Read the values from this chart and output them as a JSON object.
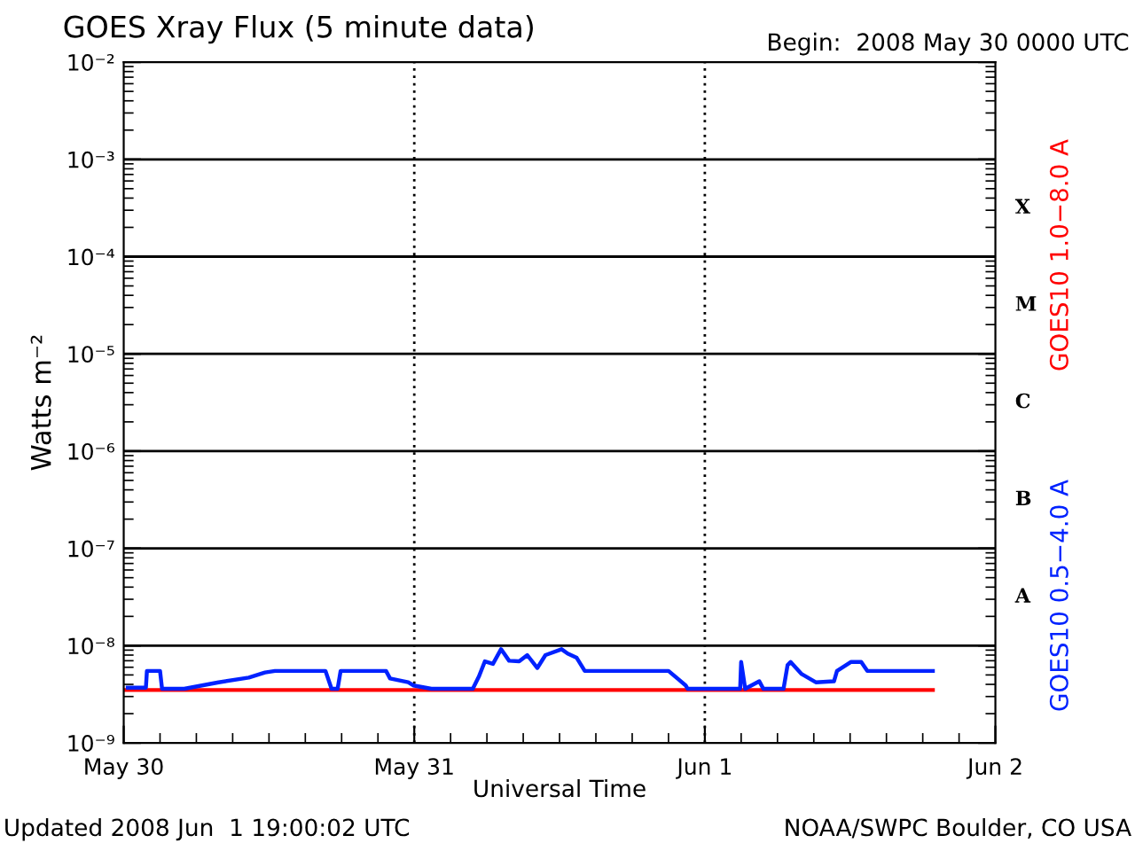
{
  "chart_data": {
    "type": "line",
    "title": "GOES Xray Flux (5 minute data)",
    "subtitle": "Begin:  2008 May 30 0000 UTC",
    "xlabel": "Universal Time",
    "ylabel": "Watts m⁻²",
    "annotations": [
      "Updated 2008 Jun  1 19:00:02 UTC",
      "NOAA/SWPC Boulder, CO USA",
      "A",
      "B",
      "C",
      "M",
      "X"
    ],
    "log": "y",
    "grid": true,
    "legend": "right",
    "line_style": "solid",
    "marker": "none",
    "xlim": [
      "2008-05-30T00:00",
      "2008-06-02T00:00"
    ],
    "xticks": [
      {
        "value": "2008-05-30",
        "label": "May 30"
      },
      {
        "value": "2008-05-31",
        "label": "May 31"
      },
      {
        "value": "2008-06-01",
        "label": "Jun 1"
      },
      {
        "value": "2008-06-02",
        "label": "Jun 2"
      }
    ],
    "ylim": [
      1e-09,
      0.01
    ],
    "yticks": [
      {
        "value": 1e-09,
        "label": "10⁻⁹"
      },
      {
        "value": 1e-08,
        "label": "10⁻⁸"
      },
      {
        "value": 1e-07,
        "label": "10⁻⁷"
      },
      {
        "value": 1e-06,
        "label": "10⁻⁶"
      },
      {
        "value": 1e-05,
        "label": "10⁻⁵"
      },
      {
        "value": 0.0001,
        "label": "10⁻⁴"
      },
      {
        "value": 0.001,
        "label": "10⁻³"
      },
      {
        "value": 0.01,
        "label": "10⁻²"
      }
    ],
    "series": [
      {
        "name": "GOES10 1.0−8.0 A",
        "color": "#ff0000",
        "x": [
          "2008-05-30T00:00",
          "2008-06-01T18:50"
        ],
        "values": [
          3.5e-09,
          3.5e-09
        ]
      },
      {
        "name": "GOES10 0.5−4.0 A",
        "color": "#0022ff",
        "x": [
          "2008-05-30T00:20",
          "2008-05-30T01:50",
          "2008-05-30T01:55",
          "2008-05-30T03:00",
          "2008-05-30T03:10",
          "2008-05-30T05:00",
          "2008-05-30T07:50",
          "2008-05-30T10:20",
          "2008-05-30T11:40",
          "2008-05-30T12:30",
          "2008-05-30T16:40",
          "2008-05-30T17:10",
          "2008-05-30T17:40",
          "2008-05-30T17:55",
          "2008-05-30T21:40",
          "2008-05-30T22:00",
          "2008-05-30T23:30",
          "2008-05-30T23:55",
          "2008-05-31T01:25",
          "2008-05-31T04:50",
          "2008-05-31T05:20",
          "2008-05-31T05:50",
          "2008-05-31T06:30",
          "2008-05-31T07:10",
          "2008-05-31T07:50",
          "2008-05-31T08:40",
          "2008-05-31T09:20",
          "2008-05-31T10:10",
          "2008-05-31T10:50",
          "2008-05-31T12:10",
          "2008-05-31T12:40",
          "2008-05-31T13:25",
          "2008-05-31T14:05",
          "2008-05-31T21:00",
          "2008-05-31T22:25",
          "2008-05-31T22:35",
          "2008-06-01T02:55",
          "2008-06-01T03:00",
          "2008-06-01T03:20",
          "2008-06-01T04:30",
          "2008-06-01T04:50",
          "2008-06-01T06:30",
          "2008-06-01T06:50",
          "2008-06-01T07:05",
          "2008-06-01T08:00",
          "2008-06-01T09:10",
          "2008-06-01T10:40",
          "2008-06-01T10:55",
          "2008-06-01T12:05",
          "2008-06-01T12:55",
          "2008-06-01T13:25",
          "2008-06-01T18:50"
        ],
        "values": [
          3.7e-09,
          3.7e-09,
          5.5e-09,
          5.5e-09,
          3.6e-09,
          3.6e-09,
          4.2e-09,
          4.7e-09,
          5.3e-09,
          5.5e-09,
          5.5e-09,
          3.6e-09,
          3.6e-09,
          5.5e-09,
          5.5e-09,
          4.6e-09,
          4.2e-09,
          3.9e-09,
          3.6e-09,
          3.6e-09,
          4.8e-09,
          6.9e-09,
          6.5e-09,
          9.2e-09,
          7e-09,
          6.9e-09,
          8e-09,
          5.9e-09,
          8e-09,
          9.2e-09,
          8.3e-09,
          7.5e-09,
          5.5e-09,
          5.5e-09,
          3.9e-09,
          3.6e-09,
          3.6e-09,
          6.8e-09,
          3.6e-09,
          4.3e-09,
          3.6e-09,
          3.6e-09,
          6.3e-09,
          6.8e-09,
          5.1e-09,
          4.2e-09,
          4.3e-09,
          5.5e-09,
          6.8e-09,
          6.8e-09,
          5.5e-09,
          5.5e-09
        ]
      }
    ]
  }
}
